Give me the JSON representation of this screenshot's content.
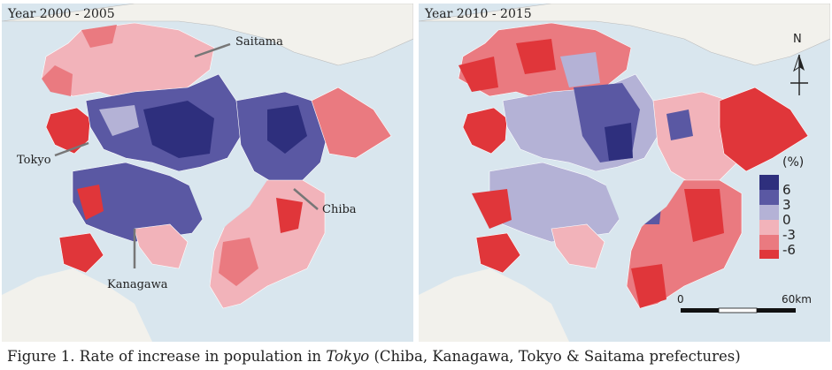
{
  "panels": [
    {
      "title": "Year 2000 - 2005"
    },
    {
      "title": "Year 2010 - 2015"
    }
  ],
  "callouts": {
    "saitama": "Saitama",
    "tokyo": "Tokyo",
    "chiba": "Chiba",
    "kanagawa": "Kanagawa"
  },
  "legend": {
    "unit": "(%)",
    "ticks": [
      "6",
      "3",
      "0",
      "-3",
      "-6"
    ],
    "classes": [
      {
        "color": "#2e2f7d"
      },
      {
        "color": "#5a58a3"
      },
      {
        "color": "#b4b2d6"
      },
      {
        "color": "#f2b3ba"
      },
      {
        "color": "#ea7a80"
      },
      {
        "color": "#e0363a"
      }
    ]
  },
  "compass": {
    "label": "N"
  },
  "scale_bar": {
    "start": "0",
    "end": "60km"
  },
  "caption": {
    "prefix": "Figure 1. Rate of increase in population in ",
    "italic": "Tokyo",
    "suffix": " (Chiba, Kanagawa, Tokyo & Saitama prefectures)"
  }
}
